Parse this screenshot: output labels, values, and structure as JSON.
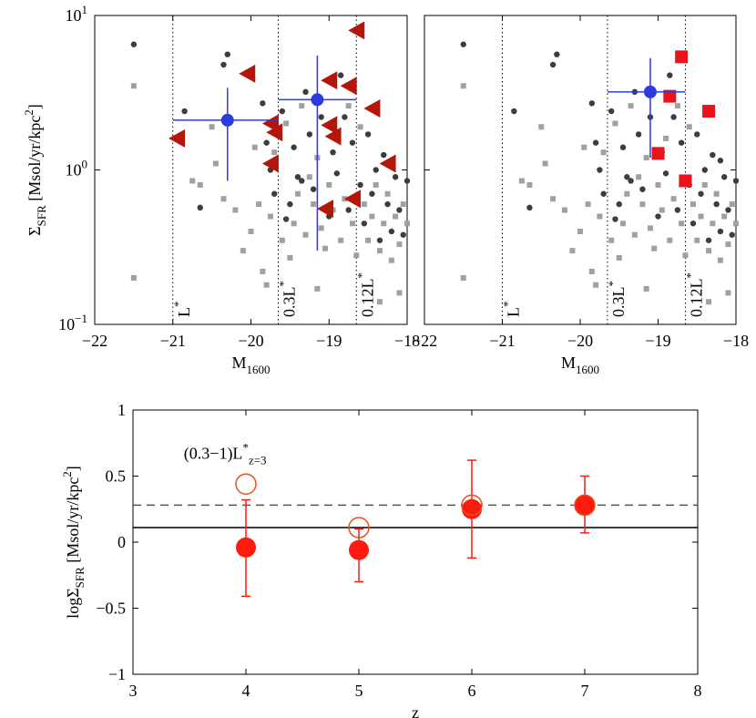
{
  "chart_data": [
    {
      "type": "scatter",
      "ylog": true,
      "xlabel": [
        "M",
        "1600"
      ],
      "ylabel": [
        "Σ",
        "SFR",
        " [Msol/yr/kpc",
        "2",
        "]"
      ],
      "xlim": [
        -22,
        -18
      ],
      "ylim": [
        0.1,
        10
      ],
      "xticks": [
        {
          "value": -22,
          "label": "−22"
        },
        {
          "value": -21,
          "label": "−21"
        },
        {
          "value": -20,
          "label": "−20"
        },
        {
          "value": -19,
          "label": "−19"
        },
        {
          "value": -18,
          "label": "−18"
        }
      ],
      "yticks": [
        {
          "value": 0.1,
          "label": "10",
          "sup": "−1"
        },
        {
          "value": 1,
          "label": "10",
          "sup": "0"
        },
        {
          "value": 10,
          "label": "10",
          "sup": "1"
        }
      ],
      "show_ytick_labels": true,
      "vlines": [
        {
          "x": -21,
          "label": [
            "L",
            "*"
          ]
        },
        {
          "x": -19.65,
          "label": [
            "0.3L",
            "*"
          ]
        },
        {
          "x": -18.65,
          "label": [
            "0.12L",
            "*"
          ]
        }
      ],
      "series": [
        {
          "marker": "square",
          "color": "#a0a0a0",
          "x": [
            -21.5,
            -21.5,
            -20.75,
            -20.65,
            -20.5,
            -20.45,
            -20.35,
            -20.2,
            -20.1,
            -20.0,
            -19.95,
            -19.9,
            -19.85,
            -19.75,
            -19.7,
            -19.6,
            -19.55,
            -19.5,
            -19.45,
            -19.4,
            -19.35,
            -19.3,
            -19.25,
            -19.2,
            -19.15,
            -19.1,
            -19.05,
            -19.0,
            -18.95,
            -18.9,
            -18.85,
            -18.8,
            -18.75,
            -18.7,
            -18.65,
            -18.6,
            -18.55,
            -18.5,
            -18.45,
            -18.4,
            -18.35,
            -18.3,
            -18.25,
            -18.2,
            -18.15,
            -18.1,
            -18.05,
            -18.0,
            -18.1,
            -18.35,
            -19.8,
            -19.15
          ],
          "y": [
            3.5,
            0.2,
            0.85,
            0.8,
            1.9,
            1.1,
            0.65,
            0.55,
            0.3,
            0.4,
            1.4,
            0.6,
            0.22,
            0.5,
            1.3,
            0.35,
            2.0,
            0.27,
            0.45,
            0.7,
            2.6,
            0.38,
            0.9,
            0.6,
            1.2,
            0.42,
            0.31,
            0.8,
            0.55,
            1.6,
            0.35,
            0.65,
            2.6,
            0.45,
            0.28,
            1.9,
            0.6,
            0.35,
            0.5,
            0.8,
            0.3,
            0.45,
            0.7,
            0.26,
            0.5,
            0.33,
            0.6,
            0.45,
            0.16,
            0.14,
            0.18,
            0.17
          ]
        },
        {
          "marker": "circle",
          "color": "#3d3d3d",
          "x": [
            -21.5,
            -20.85,
            -20.65,
            -20.3,
            -20.35,
            -19.85,
            -19.8,
            -19.75,
            -19.7,
            -19.6,
            -19.55,
            -19.5,
            -19.45,
            -19.4,
            -19.3,
            -19.25,
            -19.2,
            -19.1,
            -19.0,
            -18.95,
            -18.9,
            -18.85,
            -18.8,
            -18.75,
            -18.7,
            -18.6,
            -18.55,
            -18.5,
            -18.45,
            -18.4,
            -18.35,
            -18.3,
            -18.25,
            -18.2,
            -18.15,
            -18.1,
            -18.05,
            -18.0,
            -18.2,
            -19.35
          ],
          "y": [
            6.5,
            2.4,
            0.57,
            5.6,
            4.8,
            2.7,
            1.5,
            1.0,
            0.7,
            2.4,
            0.48,
            0.6,
            1.4,
            0.9,
            3.2,
            1.7,
            0.75,
            2.2,
            0.5,
            1.3,
            0.95,
            4.1,
            2.2,
            0.55,
            1.5,
            0.8,
            0.45,
            1.7,
            0.7,
            1.0,
            0.35,
            1.25,
            0.6,
            0.4,
            0.9,
            0.55,
            0.38,
            0.85,
            1.15,
            0.85
          ]
        },
        {
          "marker": "triangle-left",
          "color": "#b3170a",
          "x": [
            -20.95,
            -20.05,
            -19.75,
            -19.7,
            -19.75,
            -19.05,
            -19.0,
            -19.0,
            -18.95,
            -18.75,
            -18.65,
            -18.7,
            -18.45,
            -18.25
          ],
          "y": [
            1.6,
            4.2,
            2.0,
            1.75,
            1.1,
            0.56,
            3.8,
            1.95,
            1.65,
            3.5,
            8.0,
            0.65,
            2.5,
            1.1
          ]
        },
        {
          "marker": "errorbar",
          "color": "#2b3be0",
          "x": [
            -20.3,
            -19.15
          ],
          "y": [
            2.1,
            2.85
          ],
          "xlow": [
            -21,
            -19.65
          ],
          "xhigh": [
            -19.65,
            -18.65
          ],
          "ylow": [
            0.85,
            0.3
          ],
          "yhigh": [
            3.4,
            5.5
          ]
        }
      ]
    },
    {
      "type": "scatter",
      "ylog": true,
      "xlabel": [
        "M",
        "1600"
      ],
      "xlim": [
        -22,
        -18
      ],
      "ylim": [
        0.1,
        10
      ],
      "xticks": [
        {
          "value": -22,
          "label": "−22"
        },
        {
          "value": -21,
          "label": "−21"
        },
        {
          "value": -20,
          "label": "−20"
        },
        {
          "value": -19,
          "label": "−19"
        },
        {
          "value": -18,
          "label": "−18"
        }
      ],
      "yticks": [
        0.1,
        1,
        10
      ],
      "show_ytick_labels": false,
      "vlines": [
        {
          "x": -21,
          "label": [
            "L",
            "*"
          ]
        },
        {
          "x": -19.65,
          "label": [
            "0.3L",
            "*"
          ]
        },
        {
          "x": -18.65,
          "label": [
            "0.12L",
            "*"
          ]
        }
      ],
      "series": [
        {
          "marker": "square",
          "color": "#a0a0a0",
          "x": [
            -21.5,
            -21.5,
            -20.75,
            -20.65,
            -20.5,
            -20.45,
            -20.35,
            -20.2,
            -20.1,
            -20.0,
            -19.95,
            -19.9,
            -19.85,
            -19.75,
            -19.7,
            -19.6,
            -19.55,
            -19.5,
            -19.45,
            -19.4,
            -19.35,
            -19.3,
            -19.25,
            -19.2,
            -19.15,
            -19.1,
            -19.05,
            -19.0,
            -18.95,
            -18.9,
            -18.85,
            -18.8,
            -18.75,
            -18.7,
            -18.65,
            -18.6,
            -18.55,
            -18.5,
            -18.45,
            -18.4,
            -18.35,
            -18.3,
            -18.25,
            -18.2,
            -18.15,
            -18.1,
            -18.05,
            -18.0,
            -18.1,
            -18.35,
            -19.8,
            -19.15
          ],
          "y": [
            3.5,
            0.2,
            0.85,
            0.8,
            1.9,
            1.1,
            0.65,
            0.55,
            0.3,
            0.4,
            1.4,
            0.6,
            0.22,
            0.5,
            1.3,
            0.35,
            2.0,
            0.27,
            0.45,
            0.7,
            2.6,
            0.38,
            0.9,
            0.6,
            1.2,
            0.42,
            0.31,
            0.8,
            0.55,
            1.6,
            0.35,
            0.65,
            2.6,
            0.45,
            0.28,
            1.9,
            0.6,
            0.35,
            0.5,
            0.8,
            0.3,
            0.45,
            0.7,
            0.26,
            0.5,
            0.33,
            0.6,
            0.45,
            0.16,
            0.14,
            0.18,
            0.17
          ]
        },
        {
          "marker": "circle",
          "color": "#3d3d3d",
          "x": [
            -21.5,
            -20.85,
            -20.65,
            -20.3,
            -20.35,
            -19.85,
            -19.8,
            -19.75,
            -19.7,
            -19.6,
            -19.55,
            -19.5,
            -19.45,
            -19.4,
            -19.3,
            -19.25,
            -19.2,
            -19.1,
            -19.0,
            -18.95,
            -18.9,
            -18.85,
            -18.8,
            -18.75,
            -18.7,
            -18.6,
            -18.55,
            -18.5,
            -18.45,
            -18.4,
            -18.35,
            -18.3,
            -18.25,
            -18.2,
            -18.15,
            -18.1,
            -18.05,
            -18.0,
            -18.2,
            -19.35
          ],
          "y": [
            6.5,
            2.4,
            0.57,
            5.6,
            4.8,
            2.7,
            1.5,
            1.0,
            0.7,
            2.4,
            0.48,
            0.6,
            1.4,
            0.9,
            3.2,
            1.7,
            0.75,
            2.2,
            0.5,
            1.3,
            0.95,
            4.1,
            2.2,
            0.55,
            1.5,
            0.8,
            0.45,
            1.7,
            0.7,
            1.0,
            0.35,
            1.25,
            0.6,
            0.4,
            0.9,
            0.55,
            0.38,
            0.85,
            1.15,
            0.85
          ]
        },
        {
          "marker": "square-red",
          "color": "#e8131b",
          "x": [
            -18.7,
            -18.85,
            -19.0,
            -18.65,
            -18.35
          ],
          "y": [
            5.4,
            3.0,
            1.28,
            0.85,
            2.4
          ]
        },
        {
          "marker": "errorbar",
          "color": "#2b3be0",
          "x": [
            -19.1
          ],
          "y": [
            3.2
          ],
          "xlow": [
            -19.65
          ],
          "xhigh": [
            -18.65
          ],
          "ylow": [
            1.2
          ],
          "yhigh": [
            5.3
          ]
        }
      ]
    },
    {
      "type": "scatter",
      "ylog": false,
      "xlabel": [
        "z"
      ],
      "ylabel": [
        "logΣ",
        "SFR",
        " [Msol/yr/kpc",
        "2",
        "]"
      ],
      "xlim": [
        3,
        8
      ],
      "ylim": [
        -1,
        1
      ],
      "xticks": [
        3,
        4,
        5,
        6,
        7,
        8
      ],
      "yticks": [
        {
          "value": -1,
          "label": "−1"
        },
        {
          "value": -0.5,
          "label": "−0.5"
        },
        0,
        0.5,
        1
      ],
      "show_ytick_labels": true,
      "hlines": [
        {
          "y": 0.11,
          "style": "solid",
          "color": "#000000"
        },
        {
          "y": 0.28,
          "style": "dashed",
          "color": "#555555"
        }
      ],
      "annotation": [
        "(0.3−1)L",
        "*",
        "z=3"
      ],
      "series": [
        {
          "marker": "filled-errorbar",
          "color": "#ff1a0f",
          "x": [
            4,
            5,
            6,
            7
          ],
          "y": [
            -0.04,
            -0.06,
            0.25,
            0.28
          ],
          "ylow": [
            -0.41,
            -0.3,
            -0.12,
            0.07
          ],
          "yhigh": [
            0.32,
            0.1,
            0.62,
            0.5
          ]
        },
        {
          "marker": "open-circle",
          "color": "#e8501c",
          "x": [
            4,
            5,
            6,
            7
          ],
          "y": [
            0.44,
            0.11,
            0.28,
            0.28
          ]
        }
      ]
    }
  ]
}
